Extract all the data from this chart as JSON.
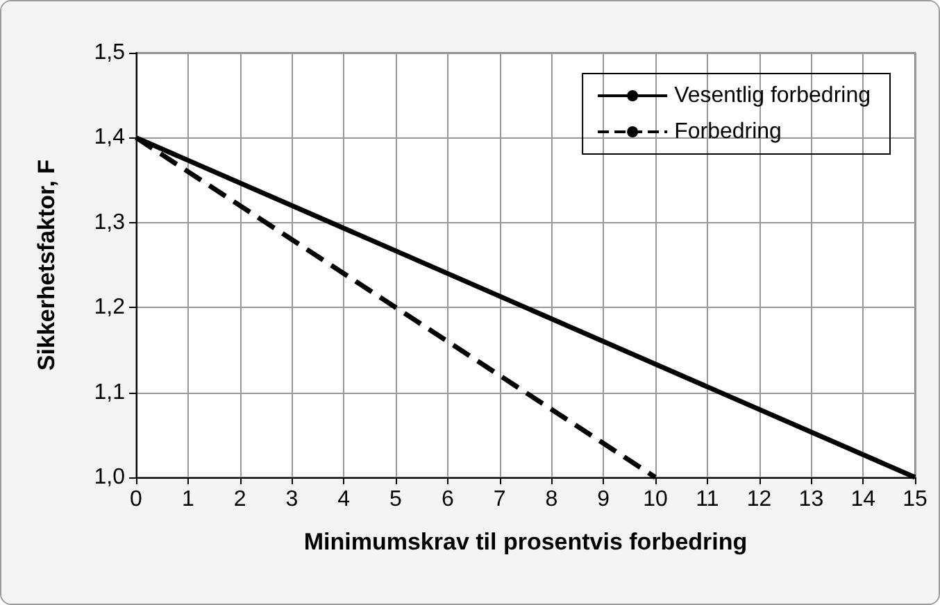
{
  "chart_data": {
    "type": "line",
    "xlabel": "Minimumskrav til prosentvis forbedring",
    "ylabel": "Sikkerhetsfaktor, F",
    "series": [
      {
        "name": "Vesentlig forbedring",
        "color": "#000000",
        "line_style": "solid",
        "x": [
          0,
          15
        ],
        "values": [
          1.4,
          1.0
        ]
      },
      {
        "name": "Forbedring",
        "color": "#000000",
        "line_style": "dashed",
        "x": [
          0,
          10
        ],
        "values": [
          1.4,
          1.0
        ]
      }
    ],
    "xlim": [
      0,
      15
    ],
    "xticks": [
      0,
      1,
      2,
      3,
      4,
      5,
      6,
      7,
      8,
      9,
      10,
      11,
      12,
      13,
      14,
      15
    ],
    "ylim": [
      1.0,
      1.5
    ],
    "yticks": [
      {
        "value": 1.0,
        "label": "1,0"
      },
      {
        "value": 1.1,
        "label": "1,1"
      },
      {
        "value": 1.2,
        "label": "1,2"
      },
      {
        "value": 1.3,
        "label": "1,3"
      },
      {
        "value": 1.4,
        "label": "1,4"
      },
      {
        "value": 1.5,
        "label": "1,5"
      }
    ],
    "grid": true,
    "legend": "top right",
    "marker": "none"
  }
}
